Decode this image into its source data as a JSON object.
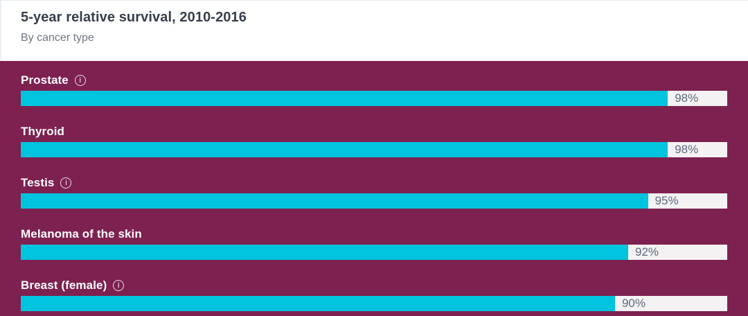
{
  "header": {
    "title": "5-year relative survival, 2010-2016",
    "subtitle": "By cancer type"
  },
  "chart_data": {
    "type": "bar",
    "orientation": "horizontal",
    "title": "5-year relative survival, 2010-2016",
    "subtitle": "By cancer type",
    "categories": [
      "Prostate",
      "Thyroid",
      "Testis",
      "Melanoma of the skin",
      "Breast (female)"
    ],
    "values": [
      98,
      98,
      95,
      92,
      90
    ],
    "value_labels": [
      "98%",
      "98%",
      "95%",
      "92%",
      "90%"
    ],
    "has_info_icon": [
      true,
      false,
      true,
      false,
      true
    ],
    "info_icon_glyph": "i",
    "unit": "%",
    "xlim": [
      0,
      107
    ],
    "grid": false,
    "legend": false,
    "value_label_position": "right-of-bar"
  },
  "colors": {
    "chart_bg": "#7c2150",
    "bar_fill": "#00c4dd",
    "bar_track": "#f4f2f3",
    "value_text": "#5d6b7c",
    "title_text": "#363e4a",
    "subtitle_text": "#6e7681",
    "label_text": "#ffffff"
  }
}
